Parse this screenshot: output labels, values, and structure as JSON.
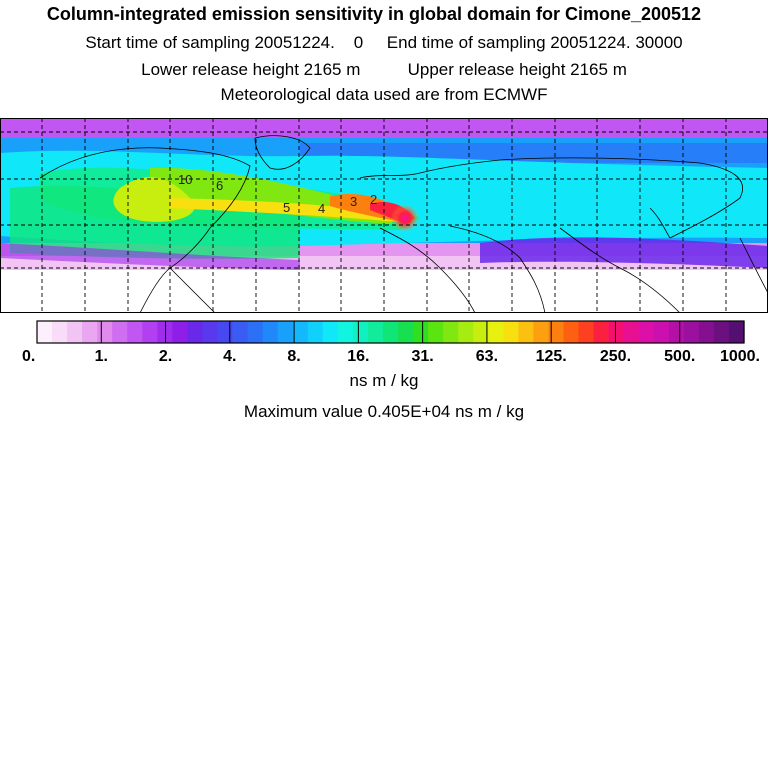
{
  "header": {
    "title": "Column-integrated emission sensitivity in global domain for Cimone_200512",
    "sampling_line": "Start time of sampling 20051224.    0     End time of sampling 20051224. 30000",
    "height_line": "Lower release height 2165 m          Upper release height 2165 m",
    "met_line": "Meteorological data used are from ECMWF"
  },
  "map": {
    "contour_labels": [
      "10",
      "6",
      "5",
      "4",
      "3",
      "2"
    ],
    "colors": {
      "land_outline": "#000000",
      "grid": "#000000",
      "background": "#ffffff"
    }
  },
  "legend": {
    "tick_labels": [
      "0.",
      "1.",
      "2.",
      "4.",
      "8.",
      "16.",
      "31.",
      "63.",
      "125.",
      "250.",
      "500.",
      "1000."
    ],
    "colors": [
      "#fdf0fd",
      "#f8dcf8",
      "#f2c4f4",
      "#eaa6f0",
      "#e08aee",
      "#cf6ef0",
      "#c256f2",
      "#b240f0",
      "#a02cec",
      "#8e1ee8",
      "#6a28ea",
      "#5a38ee",
      "#4848f0",
      "#3a5cf4",
      "#2c70f6",
      "#2088f8",
      "#18a0fa",
      "#14b8fc",
      "#10d0fc",
      "#10e8fa",
      "#10f4e0",
      "#10f0c0",
      "#10ec9c",
      "#10e678",
      "#16e050",
      "#30e020",
      "#5ae410",
      "#80e810",
      "#a6ec10",
      "#c8ee10",
      "#e8f010",
      "#f8e010",
      "#fcc010",
      "#fca010",
      "#fc8010",
      "#fc6010",
      "#fc4020",
      "#fc2040",
      "#f41070",
      "#e81090",
      "#dc10a8",
      "#cc10b0",
      "#b410a8",
      "#9c10a0",
      "#841090",
      "#6c1080",
      "#541070"
    ],
    "units": "ns m / kg",
    "max_line": "Maximum value  0.405E+04 ns m / kg"
  }
}
